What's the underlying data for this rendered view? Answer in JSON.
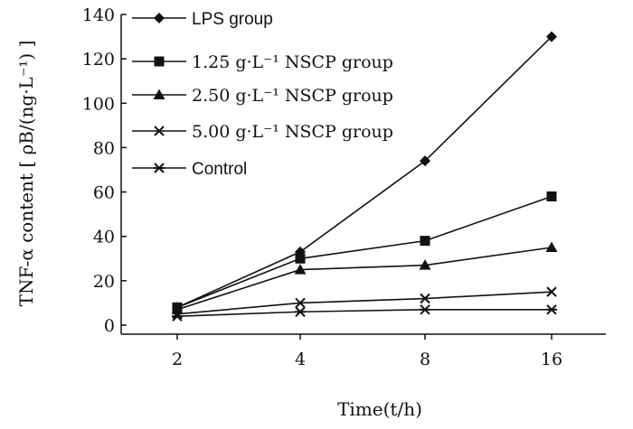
{
  "chart_data": {
    "type": "line",
    "categories": [
      "2",
      "4",
      "8",
      "16"
    ],
    "xlabel": "Time(t/h)",
    "ylabel": "TNF-α content [ ρB/(ng·L⁻¹) ]",
    "ylim": [
      0,
      140
    ],
    "yticks": [
      "0",
      "20",
      "40",
      "60",
      "80",
      "100",
      "120",
      "140"
    ],
    "grid": false,
    "legend_position": "top-left",
    "series": [
      {
        "name": "LPS group",
        "marker": "diamond",
        "values": [
          8,
          33,
          74,
          130
        ]
      },
      {
        "name": "1.25 g·L⁻¹ NSCP group",
        "marker": "square",
        "values": [
          8,
          30,
          38,
          58
        ]
      },
      {
        "name": "2.50 g·L⁻¹ NSCP group",
        "marker": "triangle",
        "values": [
          7,
          25,
          27,
          35
        ]
      },
      {
        "name": "5.00 g·L⁻¹ NSCP group",
        "marker": "x",
        "values": [
          5,
          10,
          12,
          15
        ]
      },
      {
        "name": "Control",
        "marker": "star",
        "values": [
          4,
          6,
          7,
          7
        ]
      }
    ]
  }
}
